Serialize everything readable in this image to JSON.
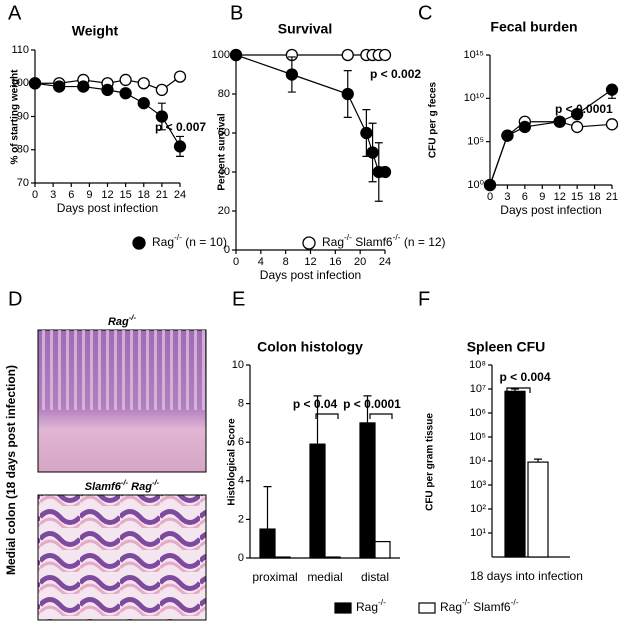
{
  "chart_data": [
    {
      "panel": "A",
      "type": "line",
      "title": "Weight",
      "xlabel": "Days post infection",
      "ylabel": "% of starting weight",
      "x": [
        0,
        4,
        8,
        12,
        15,
        18,
        21,
        24
      ],
      "series": [
        {
          "name": "Rag-/- (n = 10)",
          "color": "#000000",
          "values": [
            100,
            99,
            99,
            98,
            97,
            94,
            90,
            81
          ],
          "errors": [
            null,
            null,
            null,
            null,
            null,
            null,
            4,
            3
          ]
        },
        {
          "name": "Rag-/- Slamf6-/- (n = 12)",
          "color": "#ffffff",
          "values": [
            100,
            100,
            101,
            100,
            101,
            100,
            98,
            102
          ]
        }
      ],
      "xlim": [
        0,
        24
      ],
      "xticks": [
        0,
        3,
        6,
        9,
        12,
        15,
        18,
        21,
        24
      ],
      "ylim": [
        70,
        110
      ],
      "yticks": [
        70,
        80,
        90,
        100,
        110
      ],
      "annotations": [
        "p < 0.007"
      ]
    },
    {
      "panel": "B",
      "type": "line",
      "title": "Survival",
      "xlabel": "Days post infection",
      "ylabel": "Percent survival",
      "x": [
        0,
        9,
        18,
        21,
        22,
        23,
        24
      ],
      "series": [
        {
          "color": "#000000",
          "values": [
            100,
            90,
            80,
            60,
            50,
            40,
            40
          ],
          "errors": [
            null,
            9,
            12,
            12,
            15,
            15,
            null
          ]
        },
        {
          "color": "#ffffff",
          "values": [
            100,
            100,
            100,
            100,
            100,
            100,
            100
          ]
        }
      ],
      "xlim": [
        0,
        24
      ],
      "xticks": [
        0,
        4,
        8,
        12,
        16,
        20,
        24
      ],
      "ylim": [
        0,
        100
      ],
      "yticks": [
        0,
        20,
        40,
        60,
        80,
        100
      ],
      "annotations": [
        "p < 0.002"
      ]
    },
    {
      "panel": "C",
      "type": "line",
      "title": "Fecal burden",
      "xlabel": "Days post infection",
      "ylabel": "CFU per g feces",
      "x": [
        0,
        3,
        6,
        12,
        15,
        21
      ],
      "series": [
        {
          "color": "#000000",
          "values": [
            1,
            500000,
            5000000,
            20000000,
            150000000,
            100000000000
          ],
          "errors": [
            null,
            null,
            null,
            null,
            null,
            90000000000
          ]
        },
        {
          "color": "#ffffff",
          "values": [
            1,
            500000,
            20000000,
            20000000,
            5000000,
            10000000
          ]
        }
      ],
      "xlim": [
        0,
        21
      ],
      "xticks": [
        0,
        3,
        6,
        9,
        12,
        15,
        18,
        21
      ],
      "ylim": [
        1,
        1000000000000000
      ],
      "ylog": true,
      "yticks": [
        {
          "value": 1,
          "label": "10⁰"
        },
        {
          "value": 100000,
          "label": "10⁵"
        },
        {
          "value": 10000000000,
          "label": "10¹⁰"
        },
        {
          "value": 1000000000000000,
          "label": "10¹⁵"
        }
      ],
      "annotations": [
        "p < 0.0001"
      ]
    },
    {
      "panel": "E",
      "type": "bar",
      "title": "Colon histology",
      "ylabel": "Histological Score",
      "categories": [
        "proximal",
        "medial",
        "distal"
      ],
      "series": [
        {
          "name": "Rag-/-",
          "color": "#000000",
          "values": [
            1.5,
            5.9,
            7.0
          ],
          "errors": [
            2.2,
            2.5,
            1.4
          ]
        },
        {
          "name": "Rag-/- Slamf6-/-",
          "color": "#ffffff",
          "values": [
            0.05,
            0.05,
            0.85
          ]
        }
      ],
      "ylim": [
        0,
        10
      ],
      "yticks": [
        0,
        2,
        4,
        6,
        8,
        10
      ],
      "annotations": [
        "p < 0.04",
        "p < 0.0001"
      ]
    },
    {
      "panel": "F",
      "type": "bar",
      "title": "Spleen CFU",
      "ylabel": "CFU per gram tissue",
      "categories": [
        "18 days into infection"
      ],
      "series": [
        {
          "color": "#000000",
          "values": [
            8000000
          ],
          "errors": [
            2000000
          ]
        },
        {
          "color": "#ffffff",
          "values": [
            9000
          ],
          "errors": [
            3000
          ]
        }
      ],
      "ylim": [
        1,
        100000000
      ],
      "ylog": true,
      "yticks": [
        {
          "value": 10,
          "label": "10¹"
        },
        {
          "value": 100,
          "label": "10²"
        },
        {
          "value": 1000,
          "label": "10³"
        },
        {
          "value": 10000,
          "label": "10⁴"
        },
        {
          "value": 100000,
          "label": "10⁵"
        },
        {
          "value": 1000000,
          "label": "10⁶"
        },
        {
          "value": 10000000,
          "label": "10⁷"
        },
        {
          "value": 100000000,
          "label": "10⁸"
        }
      ],
      "annotations": [
        "p < 0.004"
      ]
    }
  ],
  "panel_d": {
    "panel": "D",
    "top_label": "Rag-/-",
    "bottom_label": "Slamf6-/- Rag-/-",
    "side_label": "Medial colon (18 days post infection)"
  }
}
